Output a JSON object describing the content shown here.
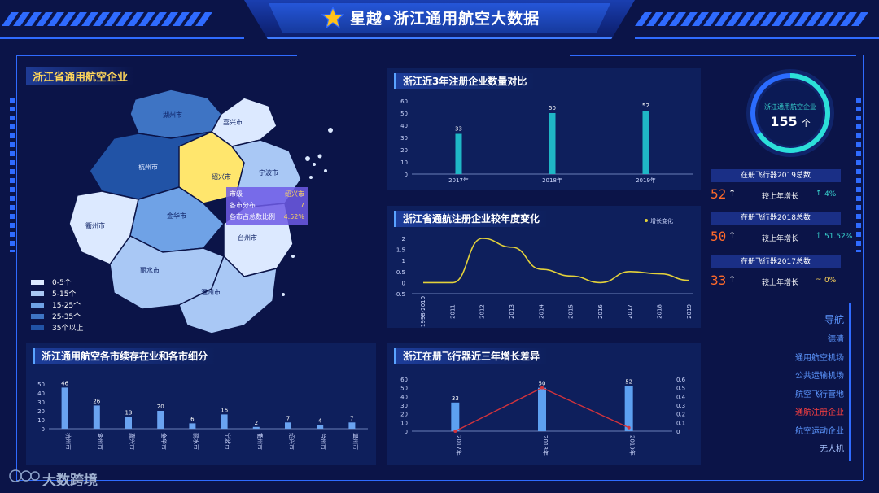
{
  "header": {
    "title": "星越•浙江通用航空大数据"
  },
  "map_panel": {
    "title": "浙江省通用航空企业",
    "cities": [
      "湖州市",
      "嘉兴市",
      "杭州市",
      "绍兴市",
      "宁波市",
      "衢州市",
      "金华市",
      "台州市",
      "丽水市",
      "温州市"
    ],
    "legend": [
      {
        "label": "0-5个",
        "color": "#dce9ff"
      },
      {
        "label": "5-15个",
        "color": "#a9c8f5"
      },
      {
        "label": "15-25个",
        "color": "#6fa2e6"
      },
      {
        "label": "25-35个",
        "color": "#3e74c4"
      },
      {
        "label": "35个以上",
        "color": "#2153a6"
      }
    ],
    "tooltip": {
      "rows": [
        {
          "k": "市级",
          "v": "绍兴市"
        },
        {
          "k": "各市分布",
          "v": "7"
        },
        {
          "k": "各市占总数比例",
          "v": "4.52%"
        }
      ]
    }
  },
  "summary": {
    "ring_label": "浙江通用航空企业",
    "ring_value": "155",
    "ring_unit": "个",
    "stats": [
      {
        "title": "在册飞行器2019总数",
        "value": "52",
        "arrow": "↑",
        "label": "较上年增长",
        "trend": "↑",
        "pct": "4%"
      },
      {
        "title": "在册飞行器2018总数",
        "value": "50",
        "arrow": "↑",
        "label": "较上年增长",
        "trend": "↑",
        "pct": "51.52%"
      },
      {
        "title": "在册飞行器2017总数",
        "value": "33",
        "arrow": "↑",
        "label": "较上年增长",
        "trend": "~",
        "pct": "0%"
      }
    ]
  },
  "nav": {
    "title": "导航",
    "items": [
      {
        "label": "德清",
        "active": false
      },
      {
        "label": "通用航空机场",
        "active": false
      },
      {
        "label": "公共运输机场",
        "active": false
      },
      {
        "label": "航空飞行营地",
        "active": false
      },
      {
        "label": "通航注册企业",
        "active": true
      },
      {
        "label": "航空运动企业",
        "active": false
      },
      {
        "label": "无人机",
        "active": false
      }
    ]
  },
  "panels": {
    "p1_title": "浙江近3年注册企业数量对比",
    "p2_title": "浙江省通航注册企业较年度变化",
    "p3_title": "浙江通用航空各市续存在业和各市细分",
    "p4_title": "浙江在册飞行器近三年增长差异"
  },
  "watermark": "大数跨境",
  "chart_data": [
    {
      "type": "bar",
      "categories": [
        "2017年",
        "2018年",
        "2019年"
      ],
      "values": [
        33,
        50,
        52
      ],
      "ylim": [
        0,
        60
      ],
      "yticks": [
        0,
        10,
        20,
        30,
        40,
        50,
        60
      ]
    },
    {
      "type": "line",
      "legend": "增长变化",
      "categories": [
        "1998-2010",
        "2011",
        "2012",
        "2013",
        "2014",
        "2015",
        "2016",
        "2017",
        "2018",
        "2019"
      ],
      "values": [
        0,
        0,
        2,
        1.6,
        0.6,
        0.3,
        0,
        0.5,
        0.4,
        0.1
      ],
      "ylim": [
        -0.5,
        2
      ],
      "yticks": [
        "2",
        "1.5",
        "1",
        "0.5",
        "0",
        "-0.5"
      ]
    },
    {
      "type": "bar",
      "categories": [
        "杭州市",
        "湖州市",
        "嘉兴市",
        "金华市",
        "丽水市",
        "宁波市",
        "衢州市",
        "绍兴市",
        "台州市",
        "温州市"
      ],
      "values": [
        46,
        26,
        13,
        20,
        6,
        16,
        2,
        7,
        4,
        7
      ],
      "ylim": [
        0,
        50
      ],
      "yticks": [
        0,
        10,
        20,
        30,
        40,
        50
      ]
    },
    {
      "type": "bar",
      "categories": [
        "2017年",
        "2018年",
        "2019年"
      ],
      "values": [
        33,
        50,
        52
      ],
      "line_values": [
        0,
        0.5,
        0.04
      ],
      "ylim": [
        0,
        60
      ],
      "y2lim": [
        0,
        0.6
      ],
      "yticks": [
        0,
        10,
        20,
        30,
        40,
        50,
        60
      ],
      "y2ticks": [
        "0",
        "0.1",
        "0.2",
        "0.3",
        "0.4",
        "0.5",
        "0.6"
      ]
    }
  ]
}
